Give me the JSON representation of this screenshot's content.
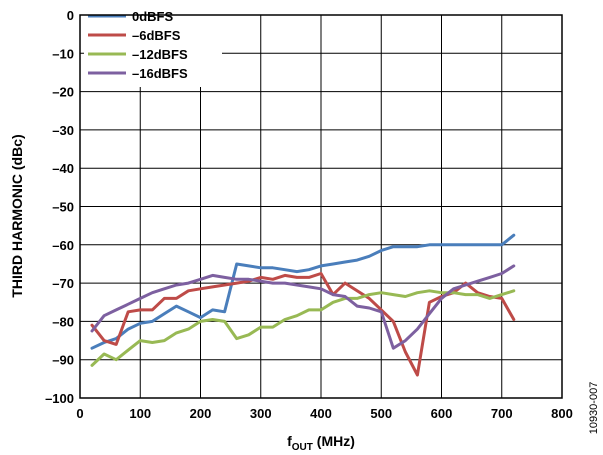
{
  "chart_data": {
    "type": "line",
    "xlabel_main": "f",
    "xlabel_sub": "OUT",
    "xlabel_unit": " (MHz)",
    "ylabel": "THIRD HARMONIC (dBc)",
    "xlim": [
      0,
      800
    ],
    "ylim": [
      -100,
      0
    ],
    "x_ticks": [
      "0",
      "100",
      "200",
      "300",
      "400",
      "500",
      "600",
      "700",
      "800"
    ],
    "y_ticks": [
      "0",
      "–10",
      "–20",
      "–30",
      "–40",
      "–50",
      "–60",
      "–70",
      "–80",
      "–90",
      "–100"
    ],
    "grid": true,
    "legend_position": "top-left",
    "figure_id": "10930-007",
    "series": [
      {
        "name": "0dBFS",
        "color": "#4a7ebb",
        "x": [
          20,
          40,
          60,
          80,
          100,
          120,
          140,
          160,
          180,
          200,
          220,
          240,
          260,
          280,
          300,
          320,
          340,
          360,
          380,
          400,
          420,
          440,
          460,
          480,
          500,
          520,
          540,
          560,
          580,
          600,
          620,
          640,
          660,
          680,
          700,
          720
        ],
        "y": [
          -87,
          -85.5,
          -84.5,
          -82,
          -80.5,
          -80,
          -78,
          -76,
          -77.5,
          -79,
          -77,
          -77.5,
          -65,
          -65.5,
          -66,
          -66,
          -66.5,
          -67,
          -66.5,
          -65.5,
          -65,
          -64.5,
          -64,
          -63,
          -61.5,
          -60.5,
          -60.5,
          -60.5,
          -60,
          -60,
          -60,
          -60,
          -60,
          -60,
          -60,
          -57.5
        ]
      },
      {
        "name": "–6dBFS",
        "color": "#be4b48",
        "x": [
          20,
          40,
          60,
          80,
          100,
          120,
          140,
          160,
          180,
          200,
          220,
          240,
          260,
          280,
          300,
          320,
          340,
          360,
          380,
          400,
          420,
          440,
          460,
          480,
          500,
          520,
          540,
          560,
          580,
          600,
          620,
          640,
          660,
          680,
          700,
          720
        ],
        "y": [
          -81,
          -85,
          -86,
          -77.5,
          -77,
          -77,
          -74,
          -74,
          -72,
          -71.5,
          -71,
          -70.5,
          -70,
          -69.5,
          -68.5,
          -69,
          -68,
          -68.5,
          -68.5,
          -67.5,
          -73,
          -70,
          -72,
          -74,
          -77,
          -80,
          -88,
          -94,
          -75,
          -73.5,
          -72.5,
          -70,
          -72.5,
          -73.5,
          -74,
          -79.5
        ]
      },
      {
        "name": "–12dBFS",
        "color": "#98b954",
        "x": [
          20,
          40,
          60,
          80,
          100,
          120,
          140,
          160,
          180,
          200,
          220,
          240,
          260,
          280,
          300,
          320,
          340,
          360,
          380,
          400,
          420,
          440,
          460,
          480,
          500,
          520,
          540,
          560,
          580,
          600,
          620,
          640,
          660,
          680,
          700,
          720
        ],
        "y": [
          -91.5,
          -88.5,
          -90,
          -87.5,
          -85,
          -85.5,
          -85,
          -83,
          -82,
          -80,
          -79.5,
          -80,
          -84.5,
          -83.5,
          -81.5,
          -81.5,
          -79.5,
          -78.5,
          -77,
          -77,
          -75,
          -74,
          -74,
          -73,
          -72.5,
          -73,
          -73.5,
          -72.5,
          -72,
          -72.5,
          -72.5,
          -73,
          -73,
          -74,
          -73,
          -72
        ]
      },
      {
        "name": "–16dBFS",
        "color": "#7d60a0",
        "x": [
          20,
          40,
          60,
          80,
          100,
          120,
          140,
          160,
          180,
          200,
          220,
          240,
          260,
          280,
          300,
          320,
          340,
          360,
          380,
          400,
          420,
          440,
          460,
          480,
          500,
          520,
          540,
          560,
          580,
          600,
          620,
          640,
          660,
          680,
          700,
          720
        ],
        "y": [
          -82.5,
          -78.5,
          -77,
          -75.5,
          -74,
          -72.5,
          -71.5,
          -70.5,
          -70,
          -69,
          -68,
          -68.5,
          -69,
          -69,
          -69.5,
          -70,
          -70,
          -70.5,
          -71,
          -71.5,
          -73,
          -73.5,
          -76,
          -76.5,
          -77.5,
          -87,
          -85,
          -82,
          -78,
          -74,
          -71.5,
          -70.5,
          -69.5,
          -68.5,
          -67.5,
          -65.5
        ]
      }
    ]
  }
}
